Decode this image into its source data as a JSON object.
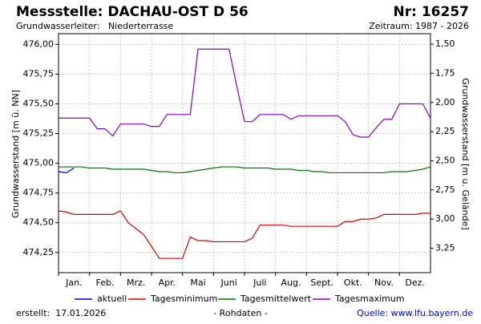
{
  "chart_data": {
    "type": "line",
    "title": "Messstelle: DACHAU-OST D 56",
    "number": "Nr: 16257",
    "aquifer": "Grundwasserleiter:   Niederterrasse",
    "period": "Zeitraum: 1987 - 2026",
    "ylabel": "Grundwasserstand [m ü. NN]",
    "y2label": "Grundwasserstand [m u. Gelände]",
    "created": "erstellt:  17.01.2026",
    "note": "- Rohdaten -",
    "source": "Quelle: www.lfu.bayern.de",
    "categories": [
      "Jan.",
      "Feb.",
      "Mrz.",
      "Apr.",
      "Mai",
      "Juni",
      "Juli",
      "Aug.",
      "Sept.",
      "Okt.",
      "Nov.",
      "Dez."
    ],
    "xlim": [
      0,
      12
    ],
    "x": [
      0,
      0.25,
      0.5,
      0.75,
      1,
      1.25,
      1.5,
      1.75,
      2,
      2.25,
      2.5,
      2.75,
      3,
      3.25,
      3.5,
      3.75,
      4,
      4.25,
      4.5,
      4.75,
      5,
      5.25,
      5.5,
      5.75,
      6,
      6.25,
      6.5,
      6.75,
      7,
      7.25,
      7.5,
      7.75,
      8,
      8.25,
      8.5,
      8.75,
      9,
      9.25,
      9.5,
      9.75,
      10,
      10.25,
      10.5,
      10.75,
      11,
      11.25,
      11.5,
      11.75,
      12
    ],
    "ylim": [
      474.08,
      476.09
    ],
    "yticks": [
      {
        "value": 474.25,
        "label": "474,25"
      },
      {
        "value": 474.5,
        "label": "474,50"
      },
      {
        "value": 474.75,
        "label": "474,75"
      },
      {
        "value": 475,
        "label": "475,00"
      },
      {
        "value": 475.25,
        "label": "475,25"
      },
      {
        "value": 475.5,
        "label": "475,50"
      },
      {
        "value": 475.75,
        "label": "475,75"
      },
      {
        "value": 476,
        "label": "476,00"
      }
    ],
    "y2lim": [
      3.46,
      1.41
    ],
    "y2ticks": [
      {
        "value": 3.25,
        "label": "3,25"
      },
      {
        "value": 3,
        "label": "3,00"
      },
      {
        "value": 2.75,
        "label": "2,75"
      },
      {
        "value": 2.5,
        "label": "2,50"
      },
      {
        "value": 2.25,
        "label": "2,25"
      },
      {
        "value": 2,
        "label": "2,00"
      },
      {
        "value": 1.75,
        "label": "1,75"
      },
      {
        "value": 1.5,
        "label": "1,50"
      }
    ],
    "grid": true,
    "series": [
      {
        "name": "aktuell",
        "color": "#0000cc",
        "values": [
          474.93,
          474.92,
          474.96,
          null,
          null,
          null,
          null,
          null,
          null,
          null,
          null,
          null,
          null,
          null,
          null,
          null,
          null,
          null,
          null,
          null,
          null,
          null,
          null,
          null,
          null,
          null,
          null,
          null,
          null,
          null,
          null,
          null,
          null,
          null,
          null,
          null,
          null,
          null,
          null,
          null,
          null,
          null,
          null,
          null,
          null,
          null,
          null,
          null,
          null
        ]
      },
      {
        "name": "Tagesminimum",
        "color": "#dd0000",
        "values": [
          474.6,
          474.59,
          474.57,
          474.57,
          474.57,
          474.57,
          474.57,
          474.57,
          474.6,
          474.5,
          474.45,
          474.4,
          474.3,
          474.2,
          474.2,
          474.2,
          474.2,
          474.38,
          474.35,
          474.35,
          474.34,
          474.34,
          474.34,
          474.34,
          474.34,
          474.37,
          474.48,
          474.48,
          474.48,
          474.48,
          474.47,
          474.47,
          474.47,
          474.47,
          474.47,
          474.47,
          474.47,
          474.51,
          474.51,
          474.53,
          474.53,
          474.54,
          474.57,
          474.57,
          474.57,
          474.57,
          474.57,
          474.58,
          474.58
        ]
      },
      {
        "name": "Tagesmittelwert",
        "color": "#007700",
        "values": [
          474.97,
          474.97,
          474.97,
          474.97,
          474.96,
          474.96,
          474.96,
          474.95,
          474.95,
          474.95,
          474.95,
          474.95,
          474.94,
          474.93,
          474.93,
          474.92,
          474.92,
          474.93,
          474.94,
          474.95,
          474.96,
          474.97,
          474.97,
          474.97,
          474.96,
          474.96,
          474.96,
          474.96,
          474.95,
          474.95,
          474.95,
          474.94,
          474.94,
          474.93,
          474.93,
          474.92,
          474.92,
          474.92,
          474.92,
          474.92,
          474.92,
          474.92,
          474.92,
          474.93,
          474.93,
          474.93,
          474.94,
          474.95,
          474.97
        ]
      },
      {
        "name": "Tagesmaximum",
        "color": "#8800cc",
        "values": [
          475.38,
          475.38,
          475.38,
          475.38,
          475.38,
          475.29,
          475.29,
          475.23,
          475.33,
          475.33,
          475.33,
          475.33,
          475.31,
          475.31,
          475.41,
          475.41,
          475.41,
          475.41,
          475.96,
          475.96,
          475.96,
          475.96,
          475.96,
          475.65,
          475.35,
          475.35,
          475.41,
          475.41,
          475.41,
          475.41,
          475.37,
          475.4,
          475.4,
          475.4,
          475.4,
          475.4,
          475.4,
          475.35,
          475.24,
          475.22,
          475.22,
          475.3,
          475.37,
          475.37,
          475.5,
          475.5,
          475.5,
          475.5,
          475.38
        ]
      }
    ]
  }
}
